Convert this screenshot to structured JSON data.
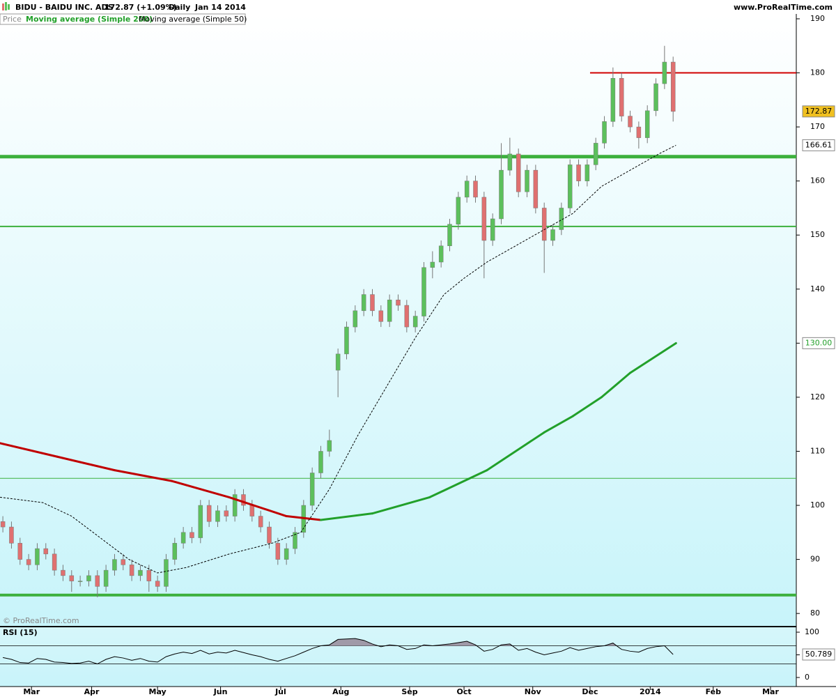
{
  "chart_data": {
    "type": "candlestick",
    "title": "BIDU - BAIDU INC. ADS",
    "quote": "172.87 (+1.09%)",
    "period": "Daily",
    "date": "Jan 14 2014",
    "source": "www.ProRealTime.com",
    "copyright": "© ProRealTime.com",
    "price_name": "Price",
    "up_color": "#5cc05c",
    "down_color": "#e07070",
    "last_color": "#f0c020",
    "xlim": [
      0,
      278
    ],
    "xticks": [
      {
        "value": 11,
        "label": "Mar"
      },
      {
        "value": 32,
        "label": "Apr"
      },
      {
        "value": 55,
        "label": "May"
      },
      {
        "value": 77,
        "label": "Jun"
      },
      {
        "value": 98,
        "label": "Jul"
      },
      {
        "value": 119,
        "label": "Aug"
      },
      {
        "value": 143,
        "label": "Sep"
      },
      {
        "value": 162,
        "label": "Oct"
      },
      {
        "value": 186,
        "label": "Nov"
      },
      {
        "value": 206,
        "label": "Dec"
      },
      {
        "value": 227,
        "label": "2014"
      },
      {
        "value": 249,
        "label": "Feb"
      },
      {
        "value": 269,
        "label": "Mar"
      }
    ],
    "ylim": [
      77.7,
      190.9
    ],
    "yticks": [
      80,
      90,
      100,
      110,
      120,
      130,
      140,
      150,
      160,
      170,
      180,
      190
    ],
    "x": [
      1,
      4,
      7,
      10,
      13,
      16,
      19,
      22,
      25,
      28,
      31,
      34,
      37,
      40,
      43,
      46,
      49,
      52,
      55,
      58,
      61,
      64,
      67,
      70,
      73,
      76,
      79,
      82,
      85,
      88,
      91,
      94,
      97,
      100,
      103,
      106,
      109,
      112,
      115,
      118,
      121,
      124,
      127,
      130,
      133,
      136,
      139,
      142,
      145,
      148,
      151,
      154,
      157,
      160,
      163,
      166,
      169,
      172,
      175,
      178,
      181,
      184,
      187,
      190,
      193,
      196,
      199,
      202,
      205,
      208,
      211,
      214,
      217,
      220,
      223,
      226,
      229,
      232,
      235
    ],
    "candles": [
      [
        97,
        98,
        95,
        96
      ],
      [
        96,
        97,
        92,
        93
      ],
      [
        93,
        94,
        89,
        90
      ],
      [
        90,
        91,
        88,
        89
      ],
      [
        89,
        93,
        88,
        92
      ],
      [
        92,
        93,
        90,
        91
      ],
      [
        91,
        92,
        87,
        88
      ],
      [
        88,
        89,
        86,
        87
      ],
      [
        87,
        88,
        84,
        86
      ],
      [
        86,
        87,
        85,
        86
      ],
      [
        86,
        88,
        85,
        87
      ],
      [
        87,
        88,
        83,
        85
      ],
      [
        85,
        89,
        84,
        88
      ],
      [
        88,
        91,
        87,
        90
      ],
      [
        90,
        91,
        88,
        89
      ],
      [
        89,
        90,
        86,
        87
      ],
      [
        87,
        89,
        86,
        88
      ],
      [
        88,
        89,
        84,
        86
      ],
      [
        86,
        87,
        84,
        85
      ],
      [
        85,
        91,
        84,
        90
      ],
      [
        90,
        94,
        89,
        93
      ],
      [
        93,
        96,
        92,
        95
      ],
      [
        95,
        96,
        93,
        94
      ],
      [
        94,
        101,
        93,
        100
      ],
      [
        100,
        101,
        96,
        97
      ],
      [
        97,
        100,
        96,
        99
      ],
      [
        99,
        100,
        97,
        98
      ],
      [
        98,
        103,
        97,
        102
      ],
      [
        102,
        103,
        99,
        100
      ],
      [
        100,
        101,
        97,
        98
      ],
      [
        98,
        99,
        95,
        96
      ],
      [
        96,
        97,
        92,
        93
      ],
      [
        93,
        94,
        89,
        90
      ],
      [
        90,
        93,
        89,
        92
      ],
      [
        92,
        96,
        91,
        95
      ],
      [
        95,
        101,
        94,
        100
      ],
      [
        100,
        107,
        99,
        106
      ],
      [
        106,
        111,
        105,
        110
      ],
      [
        110,
        114,
        109,
        112
      ],
      [
        125,
        129,
        120,
        128
      ],
      [
        128,
        134,
        127,
        133
      ],
      [
        133,
        137,
        132,
        136
      ],
      [
        136,
        140,
        135,
        139
      ],
      [
        139,
        140,
        135,
        136
      ],
      [
        136,
        137,
        133,
        134
      ],
      [
        134,
        139,
        133,
        138
      ],
      [
        138,
        139,
        136,
        137
      ],
      [
        137,
        138,
        132,
        133
      ],
      [
        133,
        136,
        132,
        135
      ],
      [
        135,
        145,
        134,
        144
      ],
      [
        144,
        147,
        142,
        145
      ],
      [
        145,
        149,
        144,
        148
      ],
      [
        148,
        153,
        147,
        152
      ],
      [
        152,
        158,
        151,
        157
      ],
      [
        157,
        161,
        156,
        160
      ],
      [
        160,
        161,
        156,
        157
      ],
      [
        157,
        158,
        142,
        149
      ],
      [
        149,
        154,
        148,
        153
      ],
      [
        153,
        167,
        152,
        162
      ],
      [
        162,
        168,
        161,
        165
      ],
      [
        165,
        166,
        157,
        158
      ],
      [
        158,
        163,
        157,
        162
      ],
      [
        162,
        163,
        154,
        155
      ],
      [
        155,
        156,
        143,
        149
      ],
      [
        149,
        152,
        148,
        151
      ],
      [
        151,
        156,
        150,
        155
      ],
      [
        155,
        164,
        154,
        163
      ],
      [
        163,
        164,
        159,
        160
      ],
      [
        160,
        164,
        159,
        163
      ],
      [
        163,
        168,
        162,
        167
      ],
      [
        167,
        172,
        166,
        171
      ],
      [
        171,
        181,
        170,
        179
      ],
      [
        179,
        180,
        171,
        172
      ],
      [
        172,
        173,
        169,
        170
      ],
      [
        170,
        171,
        166,
        168
      ],
      [
        168,
        174,
        167,
        173
      ],
      [
        173,
        179,
        172,
        178
      ],
      [
        178,
        185,
        177,
        182
      ],
      [
        182,
        183,
        171,
        172.87
      ]
    ],
    "series": [
      {
        "name": "Moving average (Simple 200)",
        "color": "#22a02a",
        "down_color": "#c00000",
        "width": 3,
        "x": [
          0,
          20,
          40,
          60,
          80,
          100,
          112,
          130,
          150,
          170,
          190,
          200,
          210,
          220,
          236
        ],
        "values": [
          111.5,
          109,
          106.5,
          104.5,
          101.5,
          98,
          97.3,
          98.5,
          101.5,
          106.5,
          113.5,
          116.5,
          120,
          124.5,
          130
        ],
        "value_labels": [
          null,
          null,
          null,
          null,
          null,
          null,
          null,
          null,
          null,
          null,
          null,
          null,
          null,
          null,
          "130.00"
        ]
      },
      {
        "name": "Moving average (Simple 50)",
        "color": "#000000",
        "dashed": true,
        "width": 1,
        "x": [
          0,
          15,
          25,
          35,
          45,
          55,
          65,
          80,
          95,
          105,
          115,
          125,
          135,
          145,
          155,
          162,
          170,
          180,
          190,
          200,
          210,
          220,
          230,
          236
        ],
        "values": [
          101.5,
          100.5,
          98,
          94,
          90,
          87.5,
          88.5,
          91,
          93,
          95,
          103,
          113,
          122,
          131,
          139,
          142,
          145,
          148,
          151,
          154,
          159,
          162,
          165,
          166.61
        ]
      }
    ],
    "levels": [
      {
        "value": 180,
        "color": "#d00000",
        "width": 2,
        "from": 206
      },
      {
        "value": 164.5,
        "color": "#3cb03c",
        "width": 5
      },
      {
        "value": 151.6,
        "color": "#3cb03c",
        "width": 2
      },
      {
        "value": 105,
        "color": "#3cb03c",
        "width": 1
      },
      {
        "value": 83.4,
        "color": "#3cb03c",
        "width": 4
      }
    ],
    "rsi": {
      "name": "RSI (15)",
      "color": "#000000",
      "ylim": [
        -20,
        110.8
      ],
      "yticks": [
        0,
        50,
        100
      ],
      "levels": [
        30,
        70
      ],
      "values": [
        44,
        40,
        33,
        32,
        42,
        40,
        34,
        33,
        31,
        32,
        36,
        30,
        40,
        46,
        43,
        38,
        42,
        36,
        34,
        46,
        52,
        56,
        53,
        60,
        52,
        56,
        54,
        60,
        55,
        50,
        46,
        40,
        36,
        42,
        48,
        56,
        64,
        70,
        72,
        84,
        85,
        86,
        82,
        74,
        68,
        72,
        70,
        62,
        64,
        72,
        70,
        72,
        74,
        77,
        80,
        72,
        58,
        62,
        72,
        74,
        60,
        64,
        56,
        50,
        54,
        58,
        66,
        60,
        64,
        68,
        70,
        76,
        62,
        58,
        56,
        64,
        68,
        70,
        50.789
      ]
    }
  }
}
